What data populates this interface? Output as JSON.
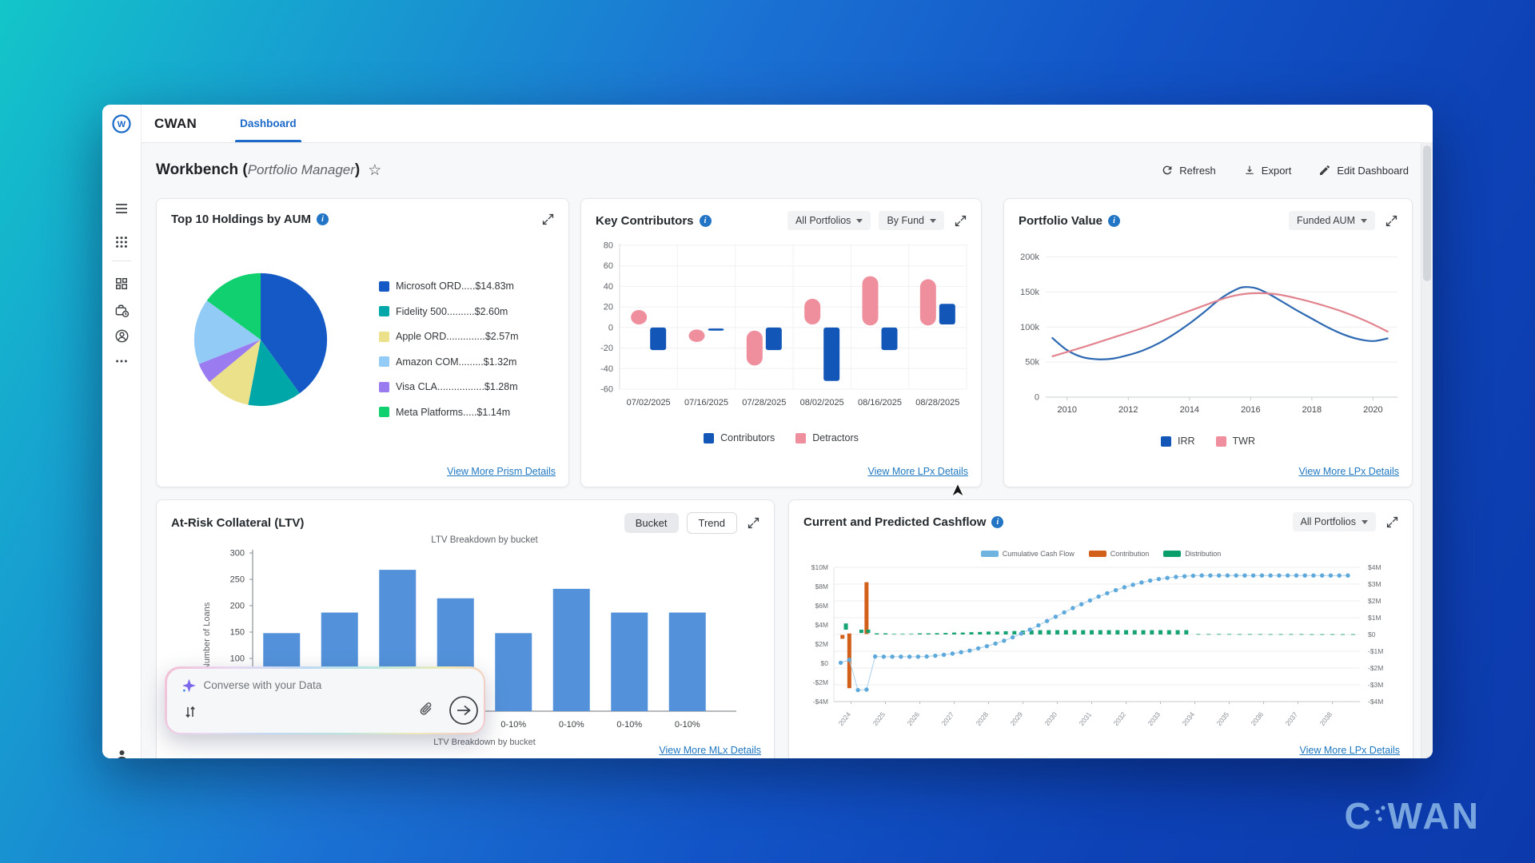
{
  "topbar": {
    "brand": "CWAN",
    "tab": "Dashboard"
  },
  "header": {
    "title": "Workbench (",
    "subtitle": "Portfolio Manager",
    "suffix": ")"
  },
  "actions": {
    "refresh": "Refresh",
    "export": "Export",
    "edit": "Edit Dashboard"
  },
  "icons": {
    "info": "i",
    "star": "☆"
  },
  "sidebar": {
    "top": [
      "menu",
      "apps",
      "dashboard",
      "portfolio-clock",
      "account",
      "more"
    ],
    "bottom": [
      "user",
      "logout"
    ]
  },
  "chat": {
    "placeholder": "Converse with your Data"
  },
  "watermark": {
    "c": "C",
    "wan": "WAN"
  },
  "panels": {
    "holdings": {
      "title": "Top 10 Holdings by AUM",
      "link": "View More Prism Details",
      "chart_data": {
        "type": "pie",
        "slices": [
          {
            "label": "Microsoft ORD",
            "pct": 40,
            "color": "#1459c5"
          },
          {
            "label": "Fidelity 500",
            "pct": 13,
            "color": "#00a7a9"
          },
          {
            "label": "Apple ORD",
            "pct": 11,
            "color": "#ebe18a"
          },
          {
            "label": "Visa CLA",
            "pct": 5,
            "color": "#9a7bf0"
          },
          {
            "label": "Amazon COM",
            "pct": 16,
            "color": "#92cbf5"
          },
          {
            "label": "Meta Platforms",
            "pct": 15,
            "color": "#10d070"
          }
        ],
        "legend": [
          {
            "text": "Microsoft ORD.....$14.83m",
            "color": "#1459c5"
          },
          {
            "text": "Fidelity 500..........$2.60m",
            "color": "#00a7a9"
          },
          {
            "text": "Apple ORD..............$2.57m",
            "color": "#ebe18a"
          },
          {
            "text": "Amazon COM.........$1.32m",
            "color": "#92cbf5"
          },
          {
            "text": "Visa CLA.................$1.28m",
            "color": "#9a7bf0"
          },
          {
            "text": "Meta Platforms.....$1.14m",
            "color": "#10d070"
          }
        ]
      }
    },
    "contributors": {
      "title": "Key Contributors",
      "filters": [
        "All Portfolios",
        "By Fund"
      ],
      "link": "View More LPx Details",
      "chart_data": {
        "type": "range-bar",
        "ylim": [
          -60,
          80
        ],
        "yticks": [
          80,
          60,
          40,
          20,
          0,
          -20,
          -40,
          -60
        ],
        "categories": [
          "07/02/2025",
          "07/16/2025",
          "07/28/2025",
          "08/02/2025",
          "08/16/2025",
          "08/28/2025"
        ],
        "series": [
          {
            "name": "Detractors",
            "color": "#ef8f9d",
            "bars": [
              [
                3,
                17
              ],
              [
                -14,
                -2
              ],
              [
                -37,
                -3
              ],
              [
                3,
                28
              ],
              [
                2,
                50
              ],
              [
                2,
                47
              ]
            ]
          },
          {
            "name": "Contributors",
            "color": "#1257b8",
            "bars": [
              [
                -22,
                0
              ],
              [
                -3,
                -1
              ],
              [
                -22,
                0
              ],
              [
                -52,
                0
              ],
              [
                -22,
                0
              ],
              [
                3,
                23
              ]
            ]
          }
        ],
        "legend": [
          {
            "label": "Contributors",
            "color": "#1257b8"
          },
          {
            "label": "Detractors",
            "color": "#ef8f9d"
          }
        ]
      }
    },
    "portfolio_value": {
      "title": "Portfolio Value",
      "filter": "Funded AUM",
      "link": "View More LPx Details",
      "chart_data": {
        "type": "line",
        "ylabels": [
          "200k",
          "150k",
          "100k",
          "50k",
          "0"
        ],
        "yvalues": [
          200,
          150,
          100,
          50,
          0
        ],
        "ylim": [
          0,
          212
        ],
        "xticks": [
          2010,
          2012,
          2014,
          2016,
          2018,
          2020
        ],
        "xlim": [
          2009.3,
          2020.8
        ],
        "series": [
          {
            "name": "IRR",
            "color": "#2d68b2",
            "points": [
              [
                2009.5,
                85
              ],
              [
                2010,
                67
              ],
              [
                2010.5,
                57
              ],
              [
                2011,
                54
              ],
              [
                2011.5,
                55
              ],
              [
                2012,
                60
              ],
              [
                2012.5,
                67
              ],
              [
                2013,
                77
              ],
              [
                2013.5,
                90
              ],
              [
                2014,
                105
              ],
              [
                2014.5,
                122
              ],
              [
                2015,
                140
              ],
              [
                2015.5,
                153
              ],
              [
                2015.8,
                157
              ],
              [
                2016.2,
                155
              ],
              [
                2016.6,
                147
              ],
              [
                2017,
                137
              ],
              [
                2017.5,
                124
              ],
              [
                2018,
                112
              ],
              [
                2018.5,
                100
              ],
              [
                2019,
                90
              ],
              [
                2019.5,
                83
              ],
              [
                2020,
                80
              ],
              [
                2020.5,
                84
              ]
            ]
          },
          {
            "name": "TWR",
            "color": "#e2848f",
            "points": [
              [
                2009.5,
                58
              ],
              [
                2010.5,
                71
              ],
              [
                2011.5,
                85
              ],
              [
                2012.5,
                99
              ],
              [
                2013.5,
                115
              ],
              [
                2014.5,
                131
              ],
              [
                2015.3,
                143
              ],
              [
                2016,
                148
              ],
              [
                2016.8,
                147
              ],
              [
                2017.5,
                141
              ],
              [
                2018.2,
                133
              ],
              [
                2019,
                122
              ],
              [
                2019.8,
                108
              ],
              [
                2020.5,
                93
              ]
            ]
          }
        ],
        "legend": [
          {
            "label": "IRR",
            "color": "#1257b8"
          },
          {
            "label": "TWR",
            "color": "#ef8f9d"
          }
        ]
      }
    },
    "ltv": {
      "title": "At-Risk Collateral (LTV)",
      "toggles": [
        "Bucket",
        "Trend"
      ],
      "active_toggle": "Bucket",
      "link": "View More MLx Details",
      "chart_data": {
        "type": "bar",
        "title": "LTV Breakdown by bucket",
        "xlabel": "LTV Breakdown by bucket",
        "ylabel": "Number of Loans",
        "yticks": [
          300,
          250,
          200,
          150,
          100
        ],
        "ylim": [
          0,
          300
        ],
        "categories": [
          "0-10%",
          "0-10%",
          "0-10%",
          "0-10%",
          "0-10%",
          "0-10%",
          "0-10%",
          "0-10%"
        ],
        "values": [
          148,
          187,
          268,
          214,
          148,
          232,
          187,
          187
        ],
        "color": "#5392da"
      }
    },
    "cashflow": {
      "title": "Current and Predicted Cashflow",
      "filter": "All Portfolios",
      "link": "View More LPx Details",
      "chart_data": {
        "type": "combo",
        "legend": [
          {
            "label": "Cumulative Cash Flow",
            "color": "#6fb3e0"
          },
          {
            "label": "Contribution",
            "color": "#d2601a"
          },
          {
            "label": "Distribution",
            "color": "#0a9e6b"
          }
        ],
        "left_tick_labels": [
          "$10M",
          "$8M",
          "$6M",
          "$4M",
          "$2M",
          "$0",
          "-$2M",
          "-$4M"
        ],
        "left_tick_values": [
          10,
          8,
          6,
          4,
          2,
          0,
          -2,
          -4
        ],
        "left_lim": [
          -4,
          10
        ],
        "right_tick_labels": [
          "$4M",
          "$3M",
          "$2M",
          "$1M",
          "$0",
          "-$1M",
          "-$2M",
          "-$3M",
          "-$4M"
        ],
        "right_tick_values": [
          4,
          3,
          2,
          1,
          0,
          -1,
          -2,
          -3,
          -4
        ],
        "right_lim": [
          -4,
          4
        ],
        "x_years": [
          2024,
          2025,
          2026,
          2027,
          2028,
          2029,
          2030,
          2031,
          2032,
          2033,
          2034,
          2035,
          2036,
          2037,
          2038
        ],
        "xlim": [
          2023.5,
          2038.8
        ],
        "cumulative": [
          [
            2023.7,
            0.05
          ],
          [
            2023.95,
            0.35
          ],
          [
            2024.2,
            -2.8
          ],
          [
            2024.45,
            -2.75
          ],
          [
            2024.7,
            0.7
          ],
          [
            2024.95,
            0.68
          ],
          [
            2025.2,
            0.68
          ],
          [
            2025.45,
            0.68
          ],
          [
            2025.7,
            0.68
          ],
          [
            2025.95,
            0.68
          ],
          [
            2026.2,
            0.7
          ],
          [
            2026.45,
            0.78
          ],
          [
            2026.7,
            0.88
          ],
          [
            2026.95,
            1.0
          ],
          [
            2027.2,
            1.15
          ],
          [
            2027.45,
            1.32
          ],
          [
            2027.7,
            1.55
          ],
          [
            2027.95,
            1.78
          ],
          [
            2028.2,
            2.05
          ],
          [
            2028.45,
            2.35
          ],
          [
            2028.7,
            2.7
          ],
          [
            2028.95,
            3.1
          ],
          [
            2029.2,
            3.5
          ],
          [
            2029.45,
            3.95
          ],
          [
            2029.7,
            4.4
          ],
          [
            2029.95,
            4.85
          ],
          [
            2030.2,
            5.3
          ],
          [
            2030.45,
            5.75
          ],
          [
            2030.7,
            6.15
          ],
          [
            2030.95,
            6.55
          ],
          [
            2031.2,
            6.95
          ],
          [
            2031.45,
            7.3
          ],
          [
            2031.7,
            7.62
          ],
          [
            2031.95,
            7.92
          ],
          [
            2032.2,
            8.18
          ],
          [
            2032.45,
            8.42
          ],
          [
            2032.7,
            8.62
          ],
          [
            2032.95,
            8.78
          ],
          [
            2033.2,
            8.9
          ],
          [
            2033.45,
            9.0
          ],
          [
            2033.7,
            9.07
          ],
          [
            2033.95,
            9.12
          ],
          [
            2034.2,
            9.15
          ],
          [
            2034.45,
            9.15
          ],
          [
            2034.7,
            9.15
          ],
          [
            2034.95,
            9.15
          ],
          [
            2035.2,
            9.15
          ],
          [
            2035.45,
            9.15
          ],
          [
            2035.7,
            9.15
          ],
          [
            2035.95,
            9.15
          ],
          [
            2036.2,
            9.15
          ],
          [
            2036.45,
            9.15
          ],
          [
            2036.7,
            9.15
          ],
          [
            2036.95,
            9.15
          ],
          [
            2037.2,
            9.15
          ],
          [
            2037.45,
            9.15
          ],
          [
            2037.7,
            9.15
          ],
          [
            2037.95,
            9.15
          ],
          [
            2038.2,
            9.15
          ],
          [
            2038.45,
            9.15
          ]
        ],
        "contribution": [
          [
            2023.75,
            2.55,
            2.95
          ],
          [
            2023.95,
            -2.6,
            3.1
          ],
          [
            2024.45,
            3.05,
            8.45
          ]
        ],
        "distribution": [
          [
            2023.85,
            3.5,
            4.15
          ],
          [
            2024.3,
            3.15,
            3.5
          ],
          [
            2024.5,
            3.15,
            3.5
          ],
          [
            2024.75,
            3.0,
            3.12
          ],
          [
            2025.0,
            3.0,
            3.12
          ],
          [
            2025.25,
            3.0,
            3.1
          ],
          [
            2025.5,
            3.0,
            3.1
          ],
          [
            2025.75,
            3.0,
            3.1
          ],
          [
            2026.0,
            3.0,
            3.12
          ],
          [
            2026.25,
            3.0,
            3.12
          ],
          [
            2026.5,
            3.0,
            3.14
          ],
          [
            2026.75,
            3.0,
            3.16
          ],
          [
            2027.0,
            3.0,
            3.2
          ],
          [
            2027.25,
            3.0,
            3.2
          ],
          [
            2027.5,
            3.0,
            3.24
          ],
          [
            2027.75,
            3.0,
            3.26
          ],
          [
            2028.0,
            3.0,
            3.3
          ],
          [
            2028.25,
            3.0,
            3.3
          ],
          [
            2028.5,
            3.0,
            3.34
          ],
          [
            2028.75,
            3.0,
            3.36
          ],
          [
            2029.0,
            3.0,
            3.4
          ],
          [
            2029.25,
            3.0,
            3.45
          ],
          [
            2029.5,
            3.0,
            3.45
          ],
          [
            2029.75,
            3.0,
            3.45
          ],
          [
            2030.0,
            3.0,
            3.45
          ],
          [
            2030.25,
            3.0,
            3.45
          ],
          [
            2030.5,
            3.0,
            3.45
          ],
          [
            2030.75,
            3.0,
            3.45
          ],
          [
            2031.0,
            3.0,
            3.45
          ],
          [
            2031.25,
            3.0,
            3.45
          ],
          [
            2031.5,
            3.0,
            3.45
          ],
          [
            2031.75,
            3.0,
            3.45
          ],
          [
            2032.0,
            3.0,
            3.45
          ],
          [
            2032.25,
            3.0,
            3.45
          ],
          [
            2032.5,
            3.0,
            3.45
          ],
          [
            2032.75,
            3.0,
            3.45
          ],
          [
            2033.0,
            3.0,
            3.45
          ],
          [
            2033.25,
            3.0,
            3.45
          ],
          [
            2033.5,
            3.0,
            3.45
          ],
          [
            2033.75,
            3.0,
            3.45
          ],
          [
            2034.1,
            3.0,
            3.08
          ],
          [
            2034.4,
            3.0,
            3.08
          ],
          [
            2034.7,
            3.0,
            3.08
          ],
          [
            2035.0,
            3.0,
            3.08
          ],
          [
            2035.3,
            3.0,
            3.07
          ],
          [
            2035.6,
            3.0,
            3.07
          ],
          [
            2035.9,
            3.0,
            3.07
          ],
          [
            2036.2,
            3.0,
            3.06
          ],
          [
            2036.5,
            3.0,
            3.06
          ],
          [
            2036.8,
            3.0,
            3.06
          ],
          [
            2037.1,
            3.0,
            3.06
          ],
          [
            2037.4,
            3.0,
            3.05
          ],
          [
            2037.7,
            3.0,
            3.05
          ],
          [
            2038.0,
            3.0,
            3.05
          ],
          [
            2038.3,
            3.0,
            3.05
          ],
          [
            2038.6,
            3.0,
            3.05
          ]
        ]
      }
    }
  }
}
